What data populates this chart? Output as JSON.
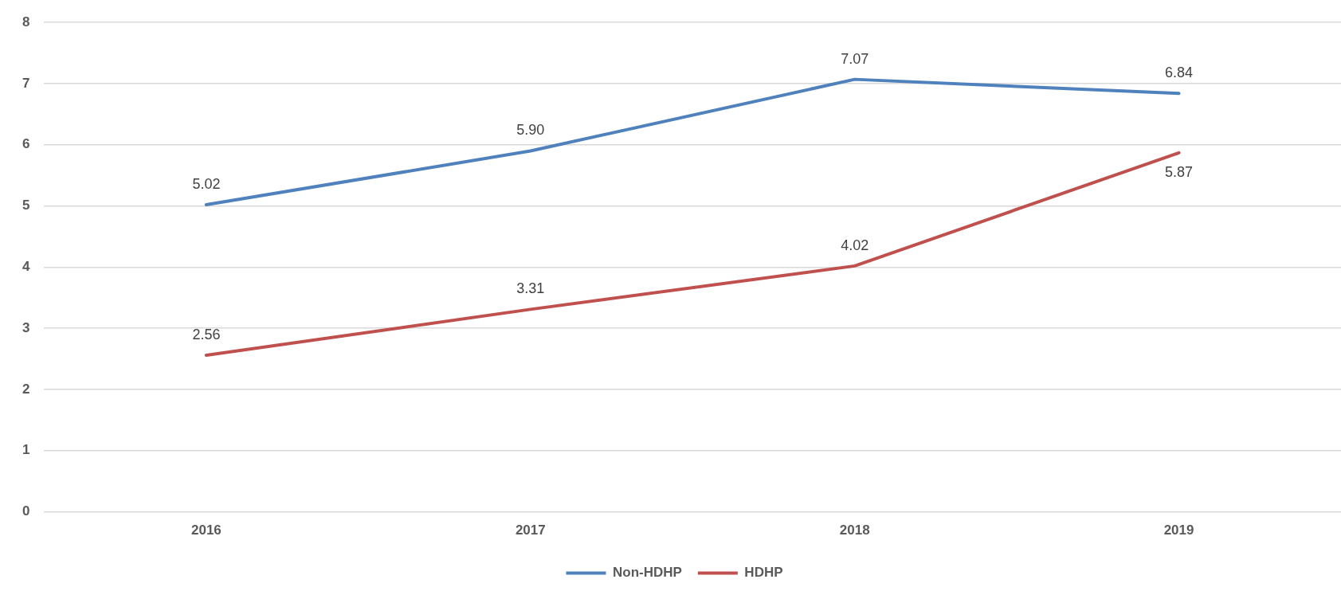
{
  "chart_data": {
    "type": "line",
    "categories": [
      "2016",
      "2017",
      "2018",
      "2019"
    ],
    "series": [
      {
        "name": "Non-HDHP",
        "color": "#4f81bd",
        "values": [
          5.02,
          5.9,
          7.07,
          6.84
        ],
        "value_labels": [
          "5.02",
          "5.90",
          "7.07",
          "6.84"
        ]
      },
      {
        "name": "HDHP",
        "color": "#c0504d",
        "values": [
          2.56,
          3.31,
          4.02,
          5.87
        ],
        "value_labels": [
          "2.56",
          "3.31",
          "4.02",
          "5.87"
        ]
      }
    ],
    "ylim": [
      0,
      8
    ],
    "yticks": [
      0,
      1,
      2,
      3,
      4,
      5,
      6,
      7,
      8
    ],
    "grid": "y",
    "legend": "bottom",
    "marker": "none",
    "line_style": "solid"
  }
}
